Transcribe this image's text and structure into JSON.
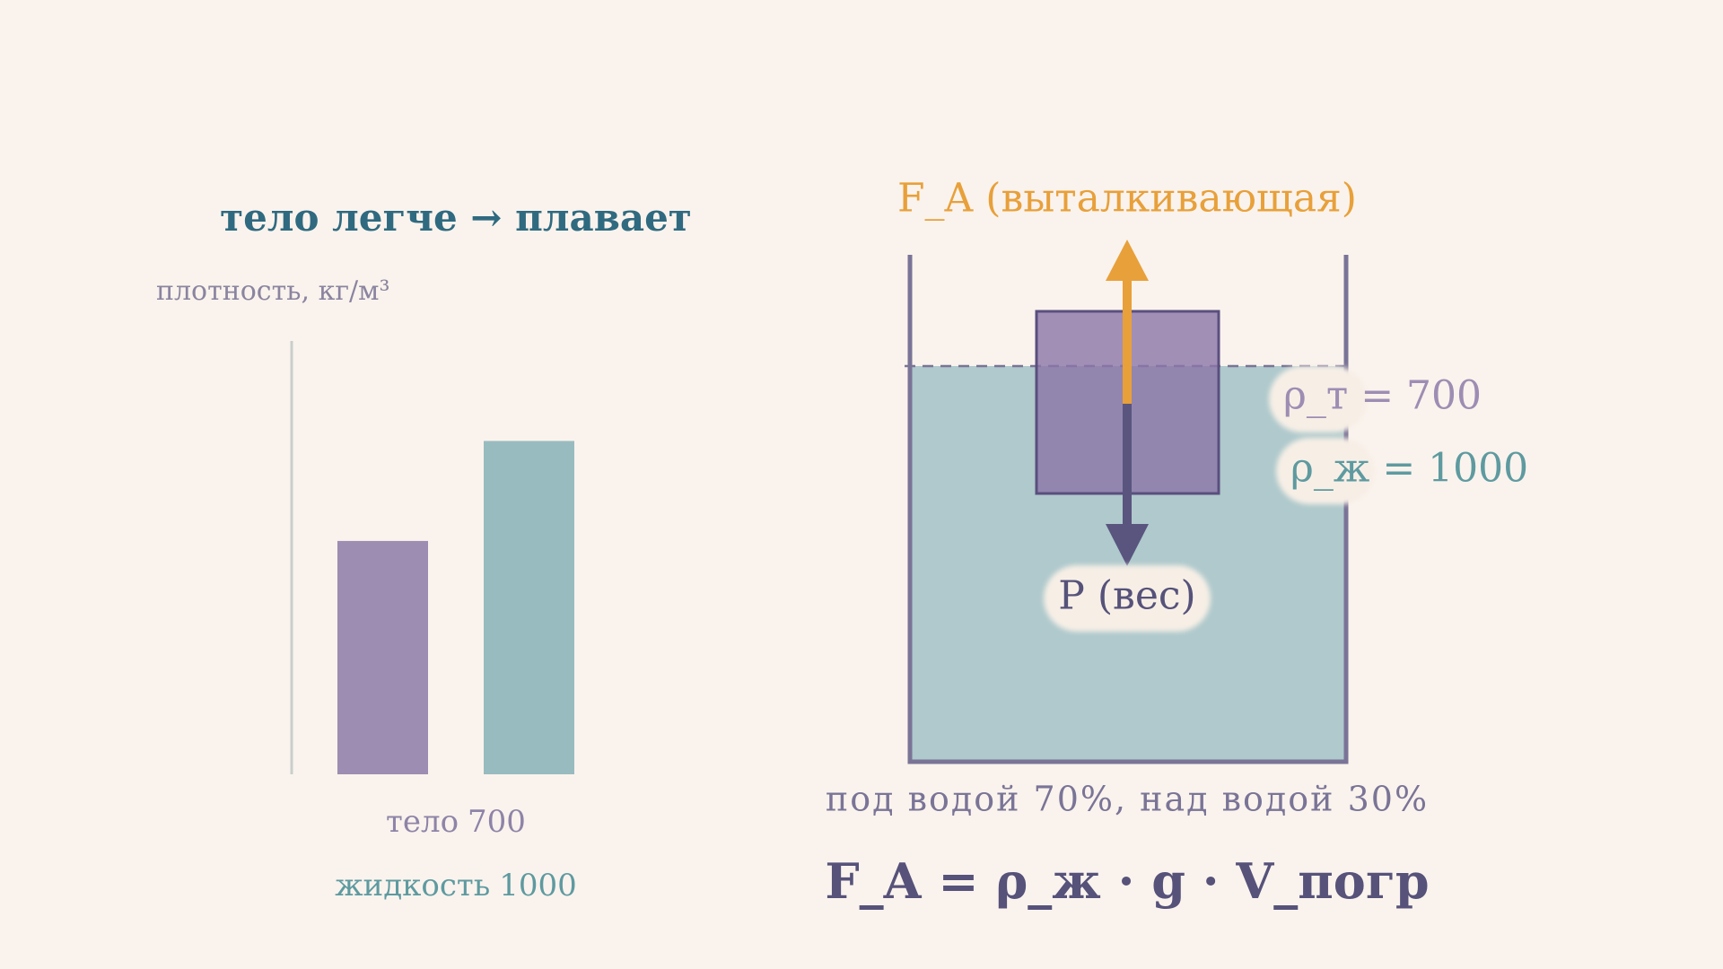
{
  "chart_data": {
    "type": "bar",
    "title": "тело легче → плавает",
    "y_label": "плотность, кг/м³",
    "categories": [
      "тело",
      "жидкость"
    ],
    "values": [
      700,
      1000
    ],
    "colors": [
      "#9d8db3",
      "#98bbc0"
    ],
    "label_colors": [
      "#8e84a8",
      "#5e9aa0"
    ],
    "ylim": [
      0,
      1300
    ]
  },
  "diagram": {
    "buoyant_force": "F_A (выталкивающая)",
    "weight": "P (вес)",
    "body_density": "ρ_т = 700",
    "liquid_density": "ρ_ж = 1000",
    "submersion": "под водой 70%, над водой 30%",
    "formula": "F_A = ρ_ж · g · V_погр"
  }
}
